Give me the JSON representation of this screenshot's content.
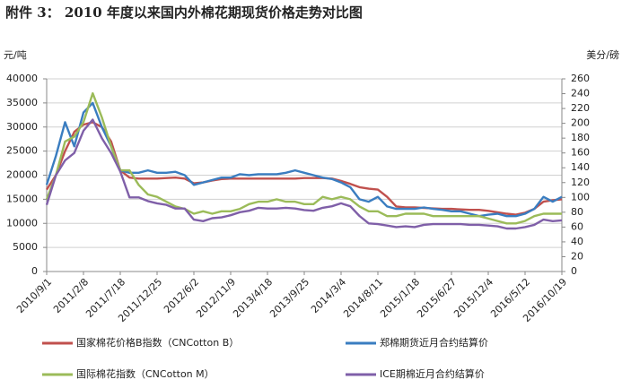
{
  "chart_data": {
    "type": "line",
    "title": "附件 3： 2010 年度以来国内外棉花期现货价格走势对比图",
    "y_label": "元/吨",
    "y2_label": "美分/磅",
    "categories": [
      "2010/9/1",
      null,
      null,
      null,
      "2011/2/8",
      null,
      null,
      null,
      "2011/7/18",
      null,
      null,
      null,
      "2011/12/25",
      null,
      null,
      null,
      "2012/6/2",
      null,
      null,
      null,
      "2012/11/9",
      null,
      null,
      null,
      "2013/4/18",
      null,
      null,
      null,
      "2013/9/25",
      null,
      null,
      null,
      "2014/3/4",
      null,
      null,
      null,
      "2014/8/11",
      null,
      null,
      null,
      "2015/1/18",
      null,
      null,
      null,
      "2015/6/27",
      null,
      null,
      null,
      "2015/12/4",
      null,
      null,
      null,
      "2016/5/12",
      null,
      null,
      null,
      "2016/10/19"
    ],
    "ylim": [
      0,
      40000
    ],
    "yticks": [
      0,
      5000,
      10000,
      15000,
      20000,
      25000,
      30000,
      35000,
      40000
    ],
    "y2lim": [
      0,
      260
    ],
    "y2ticks": [
      0,
      20,
      40,
      60,
      80,
      100,
      120,
      140,
      160,
      180,
      200,
      220,
      240,
      260
    ],
    "grid": true,
    "series": [
      {
        "name": "国家棉花价格B指数（CNCotton B）",
        "color": "#c0504d",
        "values": [
          17000,
          20000,
          25000,
          29000,
          30500,
          31000,
          30000,
          27000,
          21000,
          19500,
          19300,
          19300,
          19300,
          19400,
          19500,
          19300,
          18300,
          18500,
          18900,
          19200,
          19300,
          19300,
          19300,
          19300,
          19300,
          19300,
          19300,
          19300,
          19400,
          19400,
          19400,
          19300,
          18800,
          18200,
          17500,
          17200,
          17000,
          15500,
          13500,
          13300,
          13300,
          13200,
          13100,
          13000,
          13000,
          12900,
          12800,
          12800,
          12600,
          12300,
          12000,
          11800,
          12200,
          13000,
          14500,
          14800,
          15000
        ]
      },
      {
        "name": "郑棉期货近月合约结算价",
        "color": "#3a7dc0",
        "values": [
          18000,
          24000,
          31000,
          26000,
          33000,
          35000,
          30000,
          26000,
          21000,
          20500,
          20500,
          21000,
          20500,
          20500,
          20700,
          20000,
          18000,
          18500,
          19000,
          19500,
          19500,
          20200,
          20000,
          20200,
          20200,
          20200,
          20500,
          21000,
          20500,
          20000,
          19500,
          19200,
          18500,
          17500,
          15000,
          14500,
          15500,
          13500,
          13000,
          13000,
          13000,
          13300,
          13000,
          12800,
          12500,
          12500,
          12000,
          11500,
          11800,
          12000,
          11500,
          11500,
          12000,
          13000,
          15500,
          14500,
          15500
        ]
      },
      {
        "name": "国际棉花指数（CNCotton M）",
        "color": "#9bbb59",
        "values": [
          15000,
          20000,
          27000,
          28000,
          31000,
          37000,
          32000,
          26000,
          21000,
          21000,
          18000,
          16000,
          15500,
          14500,
          13500,
          13000,
          12000,
          12500,
          12000,
          12500,
          12500,
          13000,
          14000,
          14500,
          14500,
          15000,
          14500,
          14500,
          14000,
          14000,
          15500,
          15000,
          15500,
          15000,
          13500,
          12500,
          12500,
          11500,
          11500,
          12000,
          12000,
          12000,
          11500,
          11500,
          11500,
          11500,
          11500,
          11500,
          11000,
          10500,
          10000,
          10000,
          10500,
          11500,
          12000,
          12000,
          12000
        ]
      },
      {
        "name": "ICE期棉近月合约结算价",
        "color": "#7f5fa8",
        "axis": "y2",
        "values": [
          90,
          130,
          150,
          160,
          190,
          205,
          180,
          160,
          135,
          100,
          100,
          95,
          92,
          90,
          85,
          85,
          70,
          68,
          72,
          73,
          76,
          80,
          82,
          86,
          85,
          85,
          86,
          85,
          83,
          82,
          86,
          88,
          92,
          88,
          75,
          65,
          64,
          62,
          60,
          61,
          60,
          63,
          64,
          64,
          64,
          64,
          63,
          63,
          62,
          61,
          58,
          58,
          60,
          63,
          70,
          68,
          69
        ]
      }
    ]
  }
}
